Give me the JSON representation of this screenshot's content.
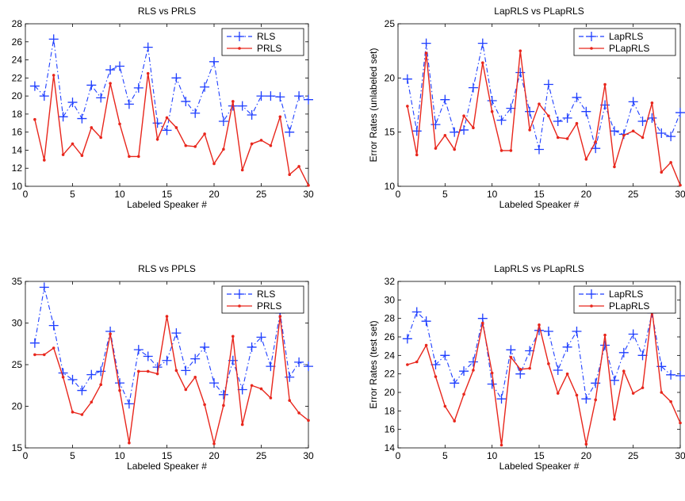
{
  "chart_data": [
    {
      "type": "line",
      "title": "RLS vs PRLS",
      "xlabel": "Labeled Speaker #",
      "ylabel": "",
      "xlim": [
        0,
        30
      ],
      "ylim": [
        10,
        28
      ],
      "xticks": [
        0,
        5,
        10,
        15,
        20,
        25,
        30
      ],
      "yticks": [
        10,
        12,
        14,
        16,
        18,
        20,
        22,
        24,
        26,
        28
      ],
      "legend_position": "top-right",
      "x": [
        1,
        2,
        3,
        4,
        5,
        6,
        7,
        8,
        9,
        10,
        11,
        12,
        13,
        14,
        15,
        16,
        17,
        18,
        19,
        20,
        21,
        22,
        23,
        24,
        25,
        26,
        27,
        28,
        29,
        30
      ],
      "series": [
        {
          "name": "RLS",
          "style": "dashdot-plus",
          "color": "#1f3fff",
          "values": [
            21.1,
            20.0,
            26.3,
            17.7,
            19.3,
            17.5,
            21.2,
            19.8,
            22.9,
            23.3,
            19.1,
            20.9,
            25.4,
            17.0,
            16.2,
            22.0,
            19.4,
            18.1,
            21.0,
            23.8,
            17.2,
            18.9,
            18.9,
            17.9,
            20.0,
            20.0,
            19.9,
            16.0,
            20.0,
            19.6
          ]
        },
        {
          "name": "PRLS",
          "style": "solid-dot",
          "color": "#e8261c",
          "values": [
            17.4,
            12.9,
            22.3,
            13.5,
            14.7,
            13.4,
            16.5,
            15.4,
            21.4,
            16.9,
            13.3,
            13.3,
            22.5,
            15.2,
            17.6,
            16.5,
            14.5,
            14.4,
            15.8,
            12.5,
            14.1,
            19.4,
            11.8,
            14.7,
            15.1,
            14.5,
            17.7,
            11.3,
            12.2,
            10.1
          ]
        }
      ]
    },
    {
      "type": "line",
      "title": "LapRLS vs PLapRLS",
      "xlabel": "Labeled Speaker #",
      "ylabel": "Error Rates (unlabeled set)",
      "xlim": [
        0,
        30
      ],
      "ylim": [
        10,
        25
      ],
      "xticks": [
        0,
        5,
        10,
        15,
        20,
        25,
        30
      ],
      "yticks": [
        10,
        15,
        20,
        25
      ],
      "legend_position": "top-right",
      "x": [
        1,
        2,
        3,
        4,
        5,
        6,
        7,
        8,
        9,
        10,
        11,
        12,
        13,
        14,
        15,
        16,
        17,
        18,
        19,
        20,
        21,
        22,
        23,
        24,
        25,
        26,
        27,
        28,
        29,
        30
      ],
      "series": [
        {
          "name": "LapRLS",
          "style": "dashdot-plus",
          "color": "#1f3fff",
          "values": [
            19.9,
            15.1,
            23.2,
            15.7,
            18.0,
            15.0,
            15.2,
            19.1,
            23.2,
            17.9,
            16.1,
            17.2,
            20.5,
            16.9,
            13.4,
            19.4,
            16.0,
            16.3,
            18.2,
            16.9,
            13.5,
            17.5,
            15.1,
            14.8,
            17.8,
            16.0,
            16.3,
            14.9,
            14.6,
            16.8
          ]
        },
        {
          "name": "PLapRLS",
          "style": "solid-dot",
          "color": "#e8261c",
          "values": [
            17.4,
            12.9,
            22.3,
            13.5,
            14.7,
            13.4,
            16.5,
            15.4,
            21.4,
            16.9,
            13.3,
            13.3,
            22.5,
            15.2,
            17.6,
            16.5,
            14.5,
            14.4,
            15.8,
            12.5,
            14.1,
            19.4,
            11.8,
            14.7,
            15.1,
            14.5,
            17.7,
            11.3,
            12.2,
            10.1
          ]
        }
      ]
    },
    {
      "type": "line",
      "title": "RLS vs PPLS",
      "xlabel": "Labeled Speaker #",
      "ylabel": "",
      "xlim": [
        0,
        30
      ],
      "ylim": [
        15,
        35
      ],
      "xticks": [
        0,
        5,
        10,
        15,
        20,
        25,
        30
      ],
      "yticks": [
        15,
        20,
        25,
        30,
        35
      ],
      "legend_position": "top-right",
      "x": [
        1,
        2,
        3,
        4,
        5,
        6,
        7,
        8,
        9,
        10,
        11,
        12,
        13,
        14,
        15,
        16,
        17,
        18,
        19,
        20,
        21,
        22,
        23,
        24,
        25,
        26,
        27,
        28,
        29,
        30
      ],
      "series": [
        {
          "name": "RLS",
          "style": "dashdot-plus",
          "color": "#1f3fff",
          "values": [
            27.6,
            34.3,
            29.7,
            24.0,
            23.2,
            21.9,
            23.8,
            24.2,
            29.0,
            22.8,
            20.3,
            26.8,
            26.0,
            24.7,
            25.5,
            28.8,
            24.3,
            25.7,
            27.1,
            22.8,
            21.4,
            25.5,
            22.0,
            27.1,
            28.3,
            24.8,
            31.2,
            23.5,
            25.3,
            24.8
          ]
        },
        {
          "name": "PRLS",
          "style": "solid-dot",
          "color": "#e8261c",
          "values": [
            26.2,
            26.2,
            27.0,
            23.5,
            19.3,
            19.0,
            20.5,
            22.6,
            28.7,
            21.9,
            15.6,
            24.2,
            24.2,
            23.9,
            30.8,
            24.3,
            22.0,
            23.5,
            20.2,
            15.5,
            20.1,
            28.4,
            17.8,
            22.5,
            22.1,
            21.0,
            30.8,
            20.7,
            19.2,
            18.3
          ]
        }
      ]
    },
    {
      "type": "line",
      "title": "LapRLS vs PLapRLS",
      "xlabel": "Labeled Speaker #",
      "ylabel": "Error Rates (test set)",
      "xlim": [
        0,
        30
      ],
      "ylim": [
        14,
        32
      ],
      "xticks": [
        0,
        5,
        10,
        15,
        20,
        25,
        30
      ],
      "yticks": [
        14,
        16,
        18,
        20,
        22,
        24,
        26,
        28,
        30,
        32
      ],
      "legend_position": "top-right",
      "x": [
        1,
        2,
        3,
        4,
        5,
        6,
        7,
        8,
        9,
        10,
        11,
        12,
        13,
        14,
        15,
        16,
        17,
        18,
        19,
        20,
        21,
        22,
        23,
        24,
        25,
        26,
        27,
        28,
        29,
        30
      ],
      "series": [
        {
          "name": "LapRLS",
          "style": "dashdot-plus",
          "color": "#1f3fff",
          "values": [
            25.8,
            28.7,
            27.7,
            23.0,
            24.0,
            21.0,
            22.3,
            23.3,
            28.0,
            20.9,
            19.3,
            24.6,
            22.0,
            24.5,
            26.7,
            26.6,
            22.4,
            24.9,
            26.6,
            19.3,
            21.0,
            25.1,
            21.3,
            24.3,
            26.3,
            24.0,
            28.6,
            22.8,
            21.9,
            21.8
          ]
        },
        {
          "name": "PLapRLS",
          "style": "solid-dot",
          "color": "#e8261c",
          "values": [
            23.0,
            23.3,
            25.1,
            21.7,
            18.5,
            16.9,
            19.8,
            22.4,
            27.5,
            22.1,
            14.3,
            23.8,
            22.5,
            22.6,
            27.3,
            23.1,
            19.9,
            22.0,
            19.7,
            14.4,
            19.2,
            26.2,
            17.1,
            22.3,
            19.9,
            20.5,
            29.0,
            20.0,
            19.0,
            16.7
          ]
        }
      ]
    }
  ]
}
